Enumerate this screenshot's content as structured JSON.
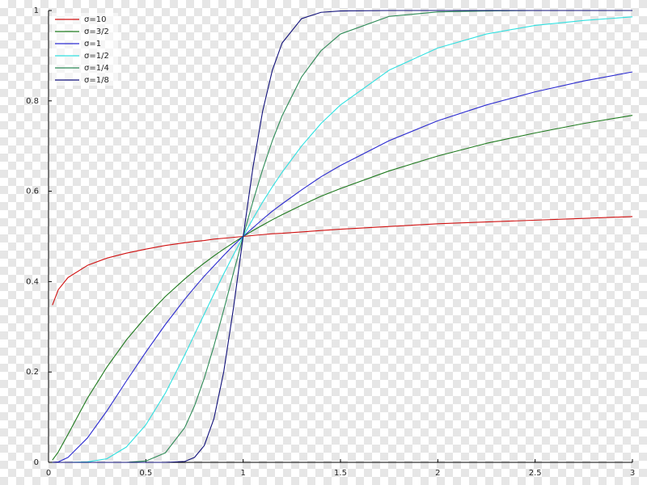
{
  "chart_data": {
    "type": "line",
    "x": [
      0.02,
      0.05,
      0.1,
      0.2,
      0.3,
      0.4,
      0.5,
      0.6,
      0.7,
      0.75,
      0.8,
      0.85,
      0.9,
      0.95,
      1,
      1.05,
      1.1,
      1.15,
      1.2,
      1.3,
      1.4,
      1.5,
      1.75,
      2,
      2.25,
      2.5,
      2.75,
      3
    ],
    "series": [
      {
        "name": "σ=10",
        "color": "#d01010",
        "values": [
          0.348,
          0.382,
          0.409,
          0.436,
          0.452,
          0.463,
          0.472,
          0.48,
          0.486,
          0.489,
          0.491,
          0.494,
          0.496,
          0.498,
          0.5,
          0.502,
          0.504,
          0.506,
          0.507,
          0.51,
          0.513,
          0.516,
          0.522,
          0.528,
          0.532,
          0.536,
          0.54,
          0.544
        ]
      },
      {
        "name": "σ=3/2",
        "color": "#1e7a1e",
        "values": [
          0.005,
          0.023,
          0.062,
          0.142,
          0.211,
          0.271,
          0.322,
          0.367,
          0.406,
          0.424,
          0.441,
          0.457,
          0.472,
          0.486,
          0.5,
          0.513,
          0.525,
          0.537,
          0.548,
          0.569,
          0.589,
          0.606,
          0.645,
          0.678,
          0.706,
          0.729,
          0.75,
          0.768
        ]
      },
      {
        "name": "σ=1",
        "color": "#2a2ad0",
        "values": [
          0,
          0.001,
          0.011,
          0.054,
          0.114,
          0.18,
          0.244,
          0.305,
          0.361,
          0.387,
          0.412,
          0.435,
          0.458,
          0.48,
          0.5,
          0.519,
          0.538,
          0.556,
          0.572,
          0.603,
          0.632,
          0.657,
          0.712,
          0.756,
          0.791,
          0.82,
          0.844,
          0.864
        ]
      },
      {
        "name": "σ=1/2",
        "color": "#30e0e0",
        "values": [
          0,
          0,
          0,
          0.001,
          0.008,
          0.034,
          0.083,
          0.153,
          0.238,
          0.283,
          0.328,
          0.373,
          0.417,
          0.459,
          0.5,
          0.539,
          0.576,
          0.61,
          0.642,
          0.7,
          0.75,
          0.791,
          0.868,
          0.917,
          0.948,
          0.967,
          0.978,
          0.986
        ]
      },
      {
        "name": "σ=1/4",
        "color": "#2e8b57",
        "values": [
          0,
          0,
          0,
          0,
          0,
          0,
          0.003,
          0.021,
          0.077,
          0.125,
          0.186,
          0.258,
          0.337,
          0.419,
          0.5,
          0.577,
          0.648,
          0.712,
          0.767,
          0.853,
          0.911,
          0.948,
          0.987,
          0.997,
          0.999,
          1,
          1,
          1
        ]
      },
      {
        "name": "σ=1/8",
        "color": "#10107a",
        "values": [
          0,
          0,
          0,
          0,
          0,
          0,
          0,
          0,
          0.002,
          0.011,
          0.037,
          0.097,
          0.2,
          0.341,
          0.5,
          0.652,
          0.777,
          0.868,
          0.928,
          0.982,
          0.996,
          0.999,
          1,
          1,
          1,
          1,
          1,
          1
        ]
      }
    ],
    "xlim": [
      0,
      3
    ],
    "ylim": [
      0,
      1
    ],
    "xticks": [
      0,
      0.5,
      1,
      1.5,
      2,
      2.5,
      3
    ],
    "yticks": [
      0,
      0.2,
      0.4,
      0.6,
      0.8,
      1
    ],
    "grid": false,
    "legend": "upper left"
  }
}
